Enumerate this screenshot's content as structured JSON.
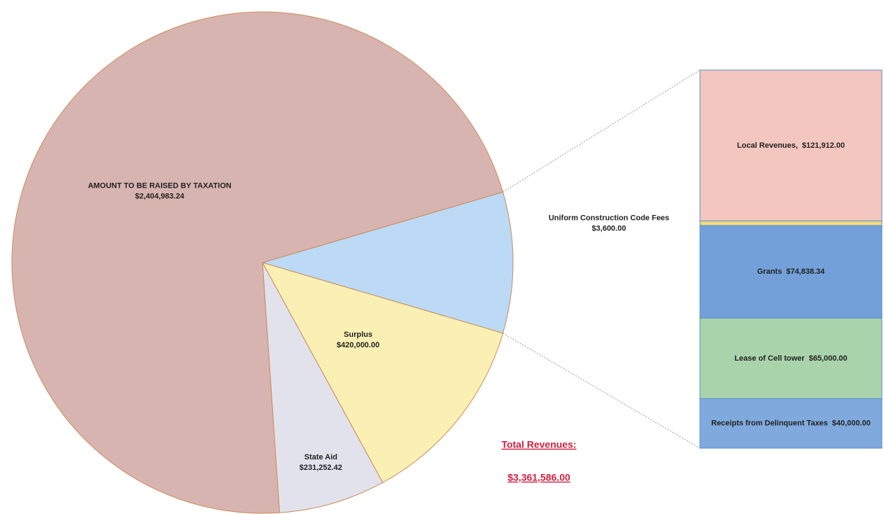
{
  "chart_data": [
    {
      "type": "pie",
      "labels": [
        "Surplus",
        "State Aid",
        "AMOUNT TO BE RAISED BY TAXATION"
      ],
      "values": [
        420000.0,
        231252.42,
        2404983.24
      ],
      "value_labels": [
        "$420,000.00",
        "$231,252.42",
        "$2,404,983.24"
      ],
      "colors": [
        "#fbf0b4",
        "#e2e2ec",
        "#d8b4b0"
      ],
      "other_color": "#bcd9f5",
      "total_label": "Total Revenues:",
      "total": 3361586.0,
      "total_value_label": "$3,361,586.00"
    },
    {
      "type": "bar",
      "labels": [
        "Local Revenues,",
        "Uniform Construction Code Fees",
        "Grants",
        "Lease of Cell tower",
        "Receipts from Delinquent Taxes"
      ],
      "values": [
        121912.0,
        3600.0,
        74838.34,
        65000.0,
        40000.0
      ],
      "value_labels": [
        "$121,912.00",
        "$3,600.00",
        "$74,838.34",
        "$65,000.00",
        "$40,000.00"
      ],
      "colors": [
        "#f3c6bf",
        "#f2dc7a",
        "#73a0d8",
        "#a9d4ab",
        "#80aadd"
      ]
    }
  ]
}
